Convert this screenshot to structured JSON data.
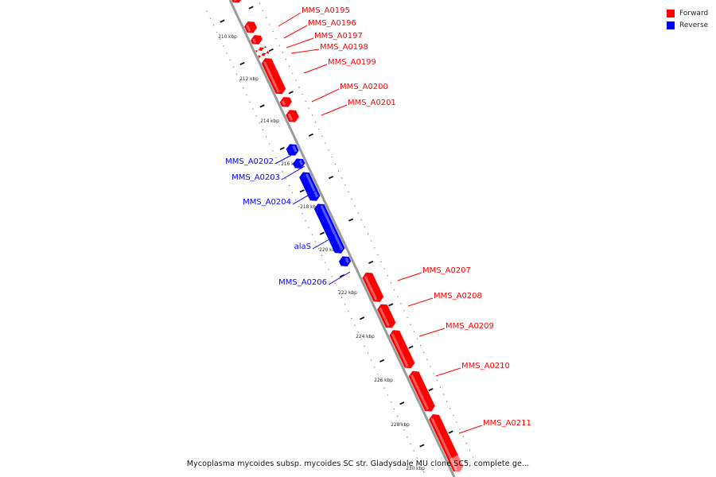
{
  "colors": {
    "forward": "#ff0000",
    "reverse": "#0000ff"
  },
  "legend": [
    {
      "label": "Forward",
      "color": "#ff0000"
    },
    {
      "label": "Reverse",
      "color": "#0000ff"
    }
  ],
  "caption": "Mycoplasma mycoides subsp. mycoides SC str. Gladysdale MU clone SC5, complete ge...",
  "ticks": [
    "210 kbp",
    "212 kbp",
    "214 kbp",
    "216 kbp",
    "218 kbp",
    "220 kbp",
    "222 kbp",
    "224 kbp",
    "226 kbp",
    "228 kbp",
    "230 kbp"
  ],
  "genes": [
    {
      "name": "",
      "strand": "forward"
    },
    {
      "name": "MMS_A0195",
      "strand": "forward"
    },
    {
      "name": "MMS_A0196",
      "strand": "forward"
    },
    {
      "name": "MMS_A0197",
      "strand": "forward"
    },
    {
      "name": "MMS_A0198",
      "strand": "forward"
    },
    {
      "name": "MMS_A0199",
      "strand": "forward"
    },
    {
      "name": "MMS_A0200",
      "strand": "forward"
    },
    {
      "name": "MMS_A0201",
      "strand": "forward"
    },
    {
      "name": "MMS_A0202",
      "strand": "reverse"
    },
    {
      "name": "MMS_A0203",
      "strand": "reverse"
    },
    {
      "name": "MMS_A0204",
      "strand": "reverse"
    },
    {
      "name": "alaS",
      "strand": "reverse"
    },
    {
      "name": "MMS_A0206",
      "strand": "reverse"
    },
    {
      "name": "MMS_A0207",
      "strand": "forward"
    },
    {
      "name": "MMS_A0208",
      "strand": "forward"
    },
    {
      "name": "MMS_A0209",
      "strand": "forward"
    },
    {
      "name": "MMS_A0210",
      "strand": "forward"
    },
    {
      "name": "MMS_A0211",
      "strand": "forward"
    }
  ]
}
